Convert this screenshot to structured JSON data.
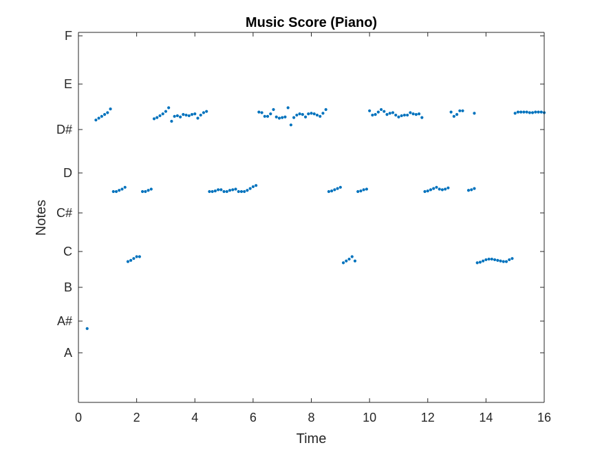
{
  "chart_data": {
    "type": "scatter",
    "title": "Music Score (Piano)",
    "xlabel": "Time",
    "ylabel": "Notes",
    "xlim": [
      0,
      16
    ],
    "ylim": [
      466.16,
      698.46
    ],
    "x_ticks": [
      0,
      2,
      4,
      6,
      8,
      10,
      12,
      14,
      16
    ],
    "y_ticks": [
      {
        "label": "A",
        "value": 440.0
      },
      {
        "label": "A#",
        "value": 466.16
      },
      {
        "label": "B",
        "value": 493.88
      },
      {
        "label": "C",
        "value": 523.25
      },
      {
        "label": "C#",
        "value": 554.37
      },
      {
        "label": "D",
        "value": 587.33
      },
      {
        "label": "D#",
        "value": 622.25
      },
      {
        "label": "E",
        "value": 659.26
      },
      {
        "label": "F",
        "value": 698.46
      }
    ],
    "grid": false,
    "marker_color": "#0072BD",
    "series": [
      {
        "points": [
          [
            0.3,
            460
          ],
          [
            0.6,
            630
          ],
          [
            0.7,
            631.5
          ],
          [
            0.8,
            633
          ],
          [
            0.9,
            634.5
          ],
          [
            1.0,
            636
          ],
          [
            1.1,
            639
          ],
          [
            1.2,
            572
          ],
          [
            1.3,
            572
          ],
          [
            1.4,
            573
          ],
          [
            1.5,
            574
          ],
          [
            1.6,
            575.5
          ],
          [
            1.7,
            515
          ],
          [
            1.8,
            516
          ],
          [
            1.9,
            517.5
          ],
          [
            2.0,
            519
          ],
          [
            2.1,
            519
          ],
          [
            2.2,
            572
          ],
          [
            2.3,
            572
          ],
          [
            2.4,
            573
          ],
          [
            2.5,
            574
          ],
          [
            2.6,
            631
          ],
          [
            2.7,
            632
          ],
          [
            2.8,
            633.5
          ],
          [
            2.9,
            635
          ],
          [
            3.0,
            637
          ],
          [
            3.1,
            640
          ],
          [
            3.2,
            629
          ],
          [
            3.3,
            633
          ],
          [
            3.4,
            633.5
          ],
          [
            3.5,
            632.5
          ],
          [
            3.6,
            634.5
          ],
          [
            3.7,
            634
          ],
          [
            3.8,
            633.5
          ],
          [
            3.9,
            634.5
          ],
          [
            4.0,
            635
          ],
          [
            4.1,
            631.5
          ],
          [
            4.2,
            634
          ],
          [
            4.3,
            636
          ],
          [
            4.4,
            637
          ],
          [
            4.5,
            572
          ],
          [
            4.6,
            572
          ],
          [
            4.7,
            572.5
          ],
          [
            4.8,
            573.5
          ],
          [
            4.9,
            573.5
          ],
          [
            5.0,
            572
          ],
          [
            5.1,
            572
          ],
          [
            5.2,
            573
          ],
          [
            5.3,
            573.5
          ],
          [
            5.4,
            574
          ],
          [
            5.5,
            572
          ],
          [
            5.6,
            572
          ],
          [
            5.7,
            572
          ],
          [
            5.8,
            573
          ],
          [
            5.9,
            574.5
          ],
          [
            6.0,
            576
          ],
          [
            6.1,
            577
          ],
          [
            6.2,
            636.5
          ],
          [
            6.3,
            636
          ],
          [
            6.4,
            633
          ],
          [
            6.5,
            633
          ],
          [
            6.6,
            635
          ],
          [
            6.7,
            638.5
          ],
          [
            6.8,
            632.5
          ],
          [
            6.9,
            631.5
          ],
          [
            7.0,
            632
          ],
          [
            7.1,
            632.5
          ],
          [
            7.2,
            640
          ],
          [
            7.3,
            626
          ],
          [
            7.4,
            632
          ],
          [
            7.5,
            634
          ],
          [
            7.6,
            635
          ],
          [
            7.7,
            634.5
          ],
          [
            7.8,
            632.5
          ],
          [
            7.9,
            635
          ],
          [
            8.0,
            635.5
          ],
          [
            8.1,
            635
          ],
          [
            8.2,
            634
          ],
          [
            8.3,
            633
          ],
          [
            8.4,
            635.5
          ],
          [
            8.5,
            638.5
          ],
          [
            8.6,
            572
          ],
          [
            8.7,
            572.5
          ],
          [
            8.8,
            573.5
          ],
          [
            8.9,
            574.5
          ],
          [
            9.0,
            575.5
          ],
          [
            9.1,
            514
          ],
          [
            9.2,
            515.5
          ],
          [
            9.3,
            517
          ],
          [
            9.4,
            519
          ],
          [
            9.5,
            515.5
          ],
          [
            9.6,
            572
          ],
          [
            9.7,
            572.5
          ],
          [
            9.8,
            573.5
          ],
          [
            9.9,
            574
          ],
          [
            10.0,
            637.5
          ],
          [
            10.1,
            634
          ],
          [
            10.2,
            634.5
          ],
          [
            10.3,
            636.5
          ],
          [
            10.4,
            638.5
          ],
          [
            10.5,
            637
          ],
          [
            10.6,
            634.5
          ],
          [
            10.7,
            635.5
          ],
          [
            10.8,
            636
          ],
          [
            10.9,
            634
          ],
          [
            11.0,
            632.5
          ],
          [
            11.1,
            633.5
          ],
          [
            11.2,
            634
          ],
          [
            11.3,
            634
          ],
          [
            11.4,
            636
          ],
          [
            11.5,
            635
          ],
          [
            11.6,
            634.5
          ],
          [
            11.7,
            635
          ],
          [
            11.8,
            632
          ],
          [
            11.9,
            572
          ],
          [
            12.0,
            572.5
          ],
          [
            12.1,
            573.5
          ],
          [
            12.2,
            574.5
          ],
          [
            12.3,
            575.5
          ],
          [
            12.4,
            574
          ],
          [
            12.5,
            573.5
          ],
          [
            12.6,
            574
          ],
          [
            12.7,
            575
          ],
          [
            12.8,
            636.5
          ],
          [
            12.9,
            633
          ],
          [
            13.0,
            634.5
          ],
          [
            13.1,
            637.5
          ],
          [
            13.2,
            637.5
          ],
          [
            13.4,
            573
          ],
          [
            13.5,
            573.5
          ],
          [
            13.6,
            574.5
          ],
          [
            13.6,
            635.5
          ],
          [
            13.7,
            514
          ],
          [
            13.8,
            514.5
          ],
          [
            13.9,
            515.5
          ],
          [
            14.0,
            516.5
          ],
          [
            14.1,
            517
          ],
          [
            14.2,
            517
          ],
          [
            14.3,
            516.5
          ],
          [
            14.4,
            516
          ],
          [
            14.5,
            515.5
          ],
          [
            14.6,
            515
          ],
          [
            14.7,
            515
          ],
          [
            14.8,
            516.5
          ],
          [
            14.9,
            517.5
          ],
          [
            15.0,
            635.5
          ],
          [
            15.1,
            636.5
          ],
          [
            15.2,
            636.5
          ],
          [
            15.3,
            636.5
          ],
          [
            15.4,
            636.5
          ],
          [
            15.5,
            636
          ],
          [
            15.6,
            636
          ],
          [
            15.7,
            636.5
          ],
          [
            15.8,
            636.5
          ],
          [
            15.9,
            636.5
          ],
          [
            16.0,
            636
          ]
        ]
      }
    ]
  }
}
